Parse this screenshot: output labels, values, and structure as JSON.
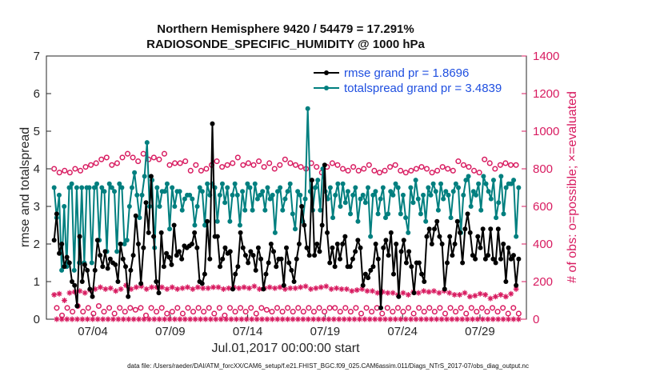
{
  "chart_data": {
    "type": "line",
    "title_line1": "Northern Hemisphere 9420 / 54479 = 17.291%",
    "title_line2": "RADIOSONDE_SPECIFIC_HUMIDITY @ 1000 hPa",
    "xlabel": "Jul.01,2017 00:00:00 start",
    "ylabel_left": "rmse and totalspread",
    "ylabel_right": "# of obs: o=possible; ×=evaluated",
    "footer": "data file: /Users/raeder/DAI/ATM_forcXX/CAM6_setup/f.e21.FHIST_BGC.f09_025.CAM6assim.011/Diags_NTrS_2017-07/obs_diag_output.nc",
    "x_range": [
      1,
      32
    ],
    "ylim_left": [
      0,
      7
    ],
    "ylim_right": [
      0,
      1400
    ],
    "x_ticks": [
      {
        "value": 4,
        "label": "07/04"
      },
      {
        "value": 9,
        "label": "07/09"
      },
      {
        "value": 14,
        "label": "07/14"
      },
      {
        "value": 19,
        "label": "07/19"
      },
      {
        "value": 24,
        "label": "07/24"
      },
      {
        "value": 29,
        "label": "07/29"
      }
    ],
    "y_ticks_left": [
      "0",
      "1",
      "2",
      "3",
      "4",
      "5",
      "6",
      "7"
    ],
    "y_ticks_right": [
      "0",
      "200",
      "400",
      "600",
      "800",
      "1000",
      "1200",
      "1400"
    ],
    "legend": [
      {
        "name": "rmse grand pr = 1.8696",
        "color": "#000000"
      },
      {
        "name": "totalspread grand pr = 3.4839",
        "color": "#007f7f"
      }
    ],
    "series": [
      {
        "name": "rmse",
        "axis": "left",
        "color": "#000000",
        "values": [
          2.1,
          2.8,
          1.75,
          2.0,
          1.4,
          1.65,
          1.5,
          1.0,
          0.9,
          0.35,
          2.2,
          1.0,
          1.45,
          1.3,
          0.8,
          0.6,
          1.3,
          2.1,
          1.7,
          1.4,
          1.8,
          1.35,
          1.6,
          1.5,
          1.45,
          1.0,
          2.0,
          1.6,
          1.4,
          0.6,
          1.3,
          1.7,
          2.75,
          2.0,
          0.95,
          1.9,
          3.1,
          2.3,
          3.8,
          2.2,
          1.0,
          0.7,
          2.3,
          1.4,
          1.75,
          1.65,
          1.45,
          2.5,
          1.7,
          1.8,
          1.6,
          1.95,
          1.9,
          1.95,
          2.0,
          2.3,
          1.9,
          1.0,
          0.95,
          1.2,
          2.6,
          1.6,
          5.2,
          2.2,
          2.2,
          1.4,
          1.6,
          1.9,
          1.75,
          1.8,
          0.8,
          1.2,
          1.4,
          2.3,
          1.9,
          1.7,
          1.5,
          1.8,
          1.7,
          1.3,
          1.9,
          1.6,
          0.8,
          1.2,
          1.5,
          2.0,
          1.8,
          1.4,
          1.6,
          1.6,
          0.9,
          1.9,
          1.5,
          1.3,
          1.0,
          1.6,
          2.0,
          3.0,
          2.5,
          1.9,
          1.7,
          3.7,
          1.7,
          2.0,
          1.8,
          2.5,
          4.1,
          2.3,
          1.5,
          1.9,
          1.4,
          2.0,
          1.6,
          2.0,
          2.2,
          1.4,
          1.4,
          1.6,
          1.8,
          2.1,
          1.9,
          0.9,
          1.2,
          1.1,
          1.3,
          1.4,
          2.0,
          1.6,
          0.3,
          1.9,
          2.1,
          1.7,
          2.3,
          1.2,
          2.0,
          0.6,
          1.8,
          2.1,
          1.5,
          1.8,
          1.4,
          0.7,
          1.5,
          1.5,
          1.2,
          1.0,
          2.2,
          2.4,
          2.0,
          2.4,
          2.6,
          2.2,
          2.0,
          0.8,
          1.5,
          2.2,
          1.7,
          2.0,
          2.6,
          2.3,
          1.5,
          2.4,
          2.8,
          2.3,
          1.7,
          1.6,
          2.2,
          1.9,
          2.4,
          1.6,
          1.7,
          2.4,
          1.6,
          1.5,
          2.4,
          1.6,
          2.0,
          1.0,
          1.9,
          1.6,
          1.7,
          0.9,
          1.6
        ]
      },
      {
        "name": "totalspread",
        "axis": "left",
        "color": "#007f7f",
        "values": [
          3.5,
          2.7,
          3.3,
          1.3,
          3.0,
          1.4,
          3.5,
          3.6,
          1.3,
          3.5,
          1.5,
          3.5,
          1.5,
          3.5,
          3.5,
          1.5,
          3.5,
          3.6,
          2.1,
          3.5,
          3.4,
          1.8,
          3.6,
          3.5,
          3.4,
          1.8,
          3.6,
          3.5,
          2.0,
          2.1,
          3.0,
          3.5,
          3.9,
          3.3,
          2.7,
          3.3,
          3.8,
          4.7,
          3.0,
          3.7,
          1.9,
          3.5,
          3.0,
          3.4,
          3.4,
          3.6,
          2.4,
          3.5,
          3.0,
          3.4,
          3.4,
          2.9,
          3.2,
          3.3,
          3.3,
          3.2,
          2.5,
          3.0,
          3.5,
          3.4,
          2.5,
          3.6,
          3.3,
          3.6,
          3.5,
          2.6,
          3.3,
          3.6,
          3.1,
          3.5,
          2.6,
          3.3,
          3.6,
          3.3,
          2.5,
          3.4,
          2.9,
          3.6,
          3.5,
          2.9,
          3.6,
          3.2,
          3.3,
          3.4,
          2.9,
          3.5,
          3.2,
          3.3,
          2.3,
          3.4,
          3.5,
          2.9,
          3.2,
          3.4,
          3.6,
          2.8,
          2.4,
          3.4,
          3.3,
          2.6,
          3.2,
          5.6,
          3.4,
          2.9,
          3.5,
          3.7,
          2.9,
          4.0,
          3.4,
          3.2,
          3.5,
          2.7,
          3.3,
          3.6,
          3.0,
          3.6,
          3.1,
          3.4,
          2.8,
          3.3,
          3.5,
          2.6,
          3.2,
          3.3,
          3.1,
          3.5,
          2.2,
          3.3,
          3.4,
          2.8,
          3.2,
          3.5,
          2.7,
          2.8,
          3.4,
          3.3,
          3.6,
          3.5,
          2.8,
          3.3,
          2.7,
          2.3,
          3.5,
          3.1,
          3.7,
          3.2,
          2.8,
          3.3,
          2.6,
          3.5,
          3.3,
          3.6,
          3.4,
          2.9,
          3.6,
          3.2,
          3.4,
          3.3,
          2.7,
          3.4,
          3.6,
          3.5,
          2.3,
          3.3,
          3.7,
          3.8,
          3.0,
          3.4,
          3.3,
          3.6,
          2.9,
          3.8,
          3.6,
          3.4,
          3.2,
          3.7,
          2.7,
          3.1,
          3.8,
          2.8,
          3.5,
          3.6,
          3.6,
          3.7,
          2.2,
          3.5
        ]
      },
      {
        "name": "possible",
        "axis": "right",
        "color": "#d81b60",
        "marker": "circle",
        "values": [
          800,
          60,
          780,
          20,
          790,
          60,
          780,
          40,
          800,
          70,
          790,
          40,
          810,
          60,
          820,
          30,
          830,
          70,
          850,
          40,
          860,
          60,
          820,
          30,
          830,
          60,
          860,
          40,
          880,
          60,
          860,
          50,
          840,
          60,
          880,
          20,
          850,
          60,
          860,
          40,
          850,
          60,
          880,
          30,
          820,
          40,
          830,
          60,
          830,
          30,
          840,
          60,
          790,
          40,
          820,
          60,
          790,
          40,
          800,
          60,
          820,
          30,
          840,
          60,
          810,
          20,
          820,
          60,
          830,
          40,
          860,
          60,
          820,
          40,
          830,
          60,
          820,
          30,
          840,
          60,
          810,
          50,
          830,
          40,
          800,
          60,
          820,
          40,
          850,
          60,
          830,
          40,
          820,
          60,
          810,
          40,
          800,
          60,
          830,
          40,
          810,
          60,
          780,
          40,
          810,
          60,
          830,
          60,
          820,
          40,
          800,
          60,
          790,
          40,
          810,
          60,
          790,
          30,
          800,
          60,
          820,
          40,
          790,
          60,
          780,
          30,
          790,
          60,
          810,
          40,
          820,
          60,
          790,
          40,
          780,
          60,
          790,
          30,
          800,
          60,
          810,
          40,
          800,
          60,
          780,
          40,
          790,
          60,
          810,
          30,
          800,
          60,
          790,
          40,
          840,
          60,
          820,
          30,
          810,
          60,
          790,
          40,
          780,
          60,
          850,
          40,
          830,
          60,
          800,
          40,
          820,
          60,
          830,
          30,
          820,
          60,
          820,
          30
        ]
      },
      {
        "name": "evaluated",
        "axis": "right",
        "color": "#d81b60",
        "marker": "asterisk",
        "values": [
          130,
          0,
          135,
          0,
          100,
          0,
          140,
          0,
          145,
          0,
          150,
          0,
          140,
          0,
          155,
          0,
          160,
          0,
          170,
          0,
          160,
          0,
          165,
          0,
          150,
          0,
          160,
          0,
          180,
          0,
          160,
          0,
          170,
          0,
          175,
          0,
          160,
          0,
          170,
          0,
          170,
          0,
          170,
          0,
          160,
          0,
          170,
          0,
          160,
          0,
          165,
          0,
          170,
          0,
          160,
          0,
          170,
          0,
          165,
          0,
          165,
          0,
          170,
          0,
          170,
          0,
          160,
          0,
          165,
          0,
          170,
          0,
          165,
          0,
          170,
          0,
          165,
          0,
          175,
          0,
          160,
          0,
          165,
          0,
          170,
          0,
          165,
          0,
          170,
          0,
          160,
          0,
          165,
          0,
          165,
          0,
          170,
          0,
          175,
          0,
          160,
          0,
          165,
          0,
          170,
          0,
          175,
          0,
          160,
          0,
          165,
          0,
          160,
          0,
          160,
          0,
          150,
          0,
          155,
          0,
          160,
          0,
          150,
          0,
          150,
          0,
          140,
          0,
          145,
          0,
          140,
          0,
          140,
          0,
          130,
          0,
          140,
          0,
          130,
          0,
          145,
          0,
          140,
          0,
          150,
          0,
          145,
          0,
          150,
          0,
          140,
          0,
          150,
          0,
          140,
          0,
          130,
          0,
          130,
          0,
          140,
          0,
          120,
          0,
          125,
          0,
          135,
          0,
          130,
          0,
          110,
          0,
          120,
          0,
          130,
          0,
          120,
          0,
          135,
          0,
          160,
          0
        ]
      }
    ]
  }
}
